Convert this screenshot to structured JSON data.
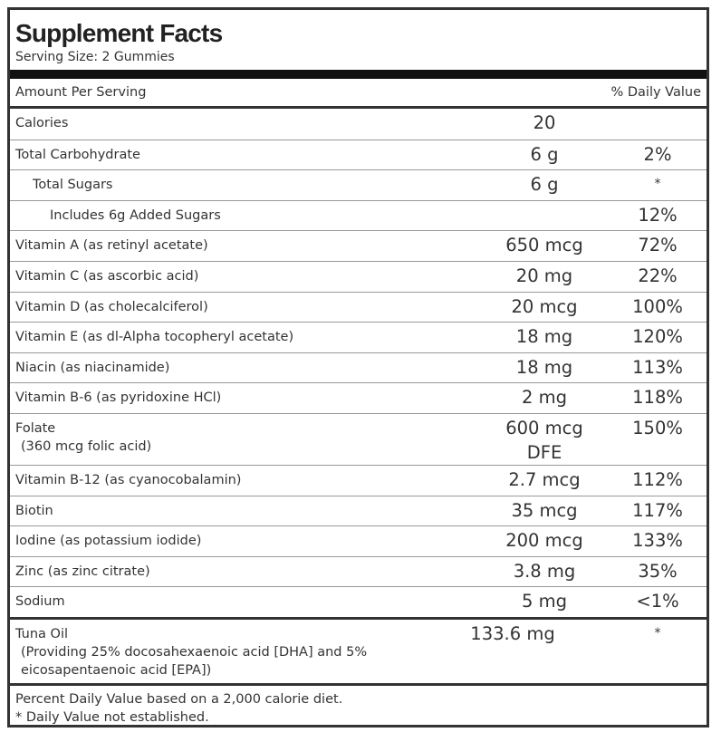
{
  "header": {
    "title": "Supplement Facts",
    "serving_size": "Serving Size: 2 Gummies"
  },
  "table": {
    "column_headers": [
      "Amount Per Serving",
      "% Daily Value"
    ],
    "rows": [
      {
        "name": "Calories",
        "amount": "20",
        "indent": 0
      },
      {
        "name": "Total Carbohydrate",
        "amount": "6 g",
        "dv": "2%",
        "indent": 0
      },
      {
        "name": "Total Sugars",
        "amount": "6 g",
        "dv": "*",
        "indent": 1
      },
      {
        "name": "Includes 6g Added Sugars",
        "dv": "12%",
        "indent": 2
      },
      {
        "name": "Vitamin A (as retinyl acetate)",
        "amount": "650 mcg",
        "dv": "72%",
        "indent": 0
      },
      {
        "name": "Vitamin C (as ascorbic acid)",
        "amount": "20 mg",
        "dv": "22%",
        "indent": 0
      },
      {
        "name": "Vitamin D (as cholecalciferol)",
        "amount": "20 mcg",
        "dv": "100%",
        "indent": 0
      },
      {
        "name": "Vitamin E (as dl-Alpha tocopheryl acetate)",
        "amount": "18 mg",
        "dv": "120%",
        "indent": 0
      },
      {
        "name": "Niacin (as niacinamide)",
        "amount": "18 mg",
        "dv": "113%",
        "indent": 0
      },
      {
        "name": "Vitamin B-6 (as pyridoxine HCl)",
        "amount": "2 mg",
        "dv": "118%",
        "indent": 0
      },
      {
        "name": "Folate",
        "sub": "(360 mcg folic acid)",
        "amount": "600 mcg DFE",
        "dv": "150%",
        "indent": 0
      },
      {
        "name": "Vitamin B-12 (as cyanocobalamin)",
        "amount": "2.7 mcg",
        "dv": "112%",
        "indent": 0
      },
      {
        "name": "Biotin",
        "amount": "35 mcg",
        "dv": "117%",
        "indent": 0
      },
      {
        "name": "Iodine (as potassium iodide)",
        "amount": "200 mcg",
        "dv": "133%",
        "indent": 0
      },
      {
        "name": "Zinc (as zinc citrate)",
        "amount": "3.8 mg",
        "dv": "35%",
        "indent": 0
      },
      {
        "name": "Sodium",
        "amount": "5 mg",
        "dv": "<1%",
        "indent": 0
      }
    ],
    "other": [
      {
        "name": "Tuna Oil",
        "sub": "(Providing 25% docosahexaenoic acid [DHA] and 5% eicosapentaenoic acid [EPA])",
        "amount": "133.6 mg",
        "dv": "*",
        "indent": 0
      }
    ]
  },
  "footer": {
    "lines": [
      "Percent Daily Value based on a 2,000 calorie diet.",
      "* Daily Value not established."
    ]
  }
}
